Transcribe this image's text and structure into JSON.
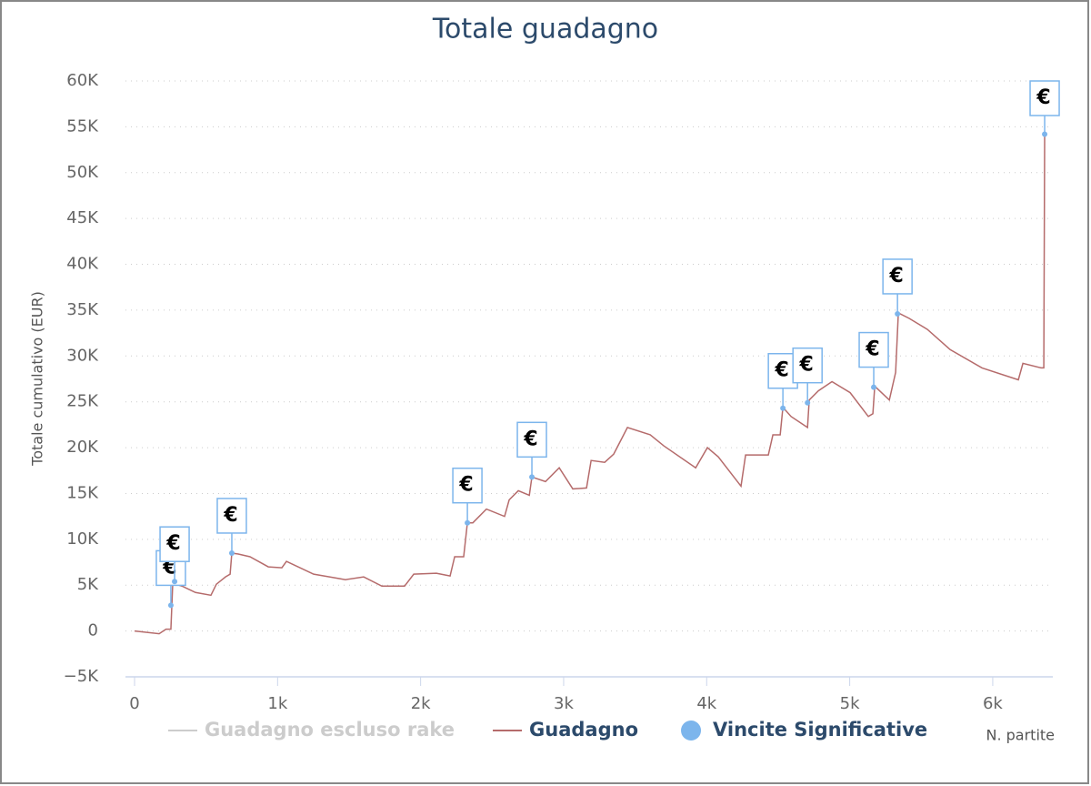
{
  "chart_data": {
    "type": "line",
    "title": "Totale guadagno",
    "y_label": "Totale cumulativo (EUR)",
    "x_label": "N. partite",
    "xlim": [
      0,
      6420
    ],
    "ylim": [
      -5000,
      60000
    ],
    "xticks": [
      0,
      {
        "value": 1000,
        "label": "1k"
      },
      {
        "value": 2000,
        "label": "2k"
      },
      {
        "value": 3000,
        "label": "3k"
      },
      {
        "value": 4000,
        "label": "4k"
      },
      {
        "value": 5000,
        "label": "5k"
      },
      {
        "value": 6000,
        "label": "6k"
      }
    ],
    "yticks": [
      {
        "value": -5000,
        "label": "−5K"
      },
      0,
      {
        "value": 5000,
        "label": "5K"
      },
      {
        "value": 10000,
        "label": "10K"
      },
      {
        "value": 15000,
        "label": "15K"
      },
      {
        "value": 20000,
        "label": "20K"
      },
      {
        "value": 25000,
        "label": "25K"
      },
      {
        "value": 30000,
        "label": "30K"
      },
      {
        "value": 35000,
        "label": "35K"
      },
      {
        "value": 40000,
        "label": "40K"
      },
      {
        "value": 45000,
        "label": "45K"
      },
      {
        "value": 50000,
        "label": "50K"
      },
      {
        "value": 55000,
        "label": "55K"
      },
      {
        "value": 60000,
        "label": "60K"
      }
    ],
    "grid": true,
    "hidden_series": [
      {
        "name": "Guadagno escluso rake",
        "color": "#cccccc"
      }
    ],
    "series": [
      {
        "name": "Guadagno",
        "color": "#b56b6b",
        "x": [
          0,
          172,
          220,
          254,
          267,
          331,
          426,
          534,
          572,
          636,
          668,
          680,
          725,
          807,
          935,
          1030,
          1062,
          1252,
          1475,
          1602,
          1729,
          1888,
          1952,
          2110,
          2206,
          2238,
          2301,
          2327,
          2365,
          2460,
          2587,
          2619,
          2683,
          2760,
          2778,
          2873,
          2969,
          3064,
          3160,
          3192,
          3287,
          3350,
          3446,
          3605,
          3700,
          3923,
          4005,
          4081,
          4240,
          4272,
          4431,
          4463,
          4514,
          4533,
          4590,
          4705,
          4717,
          4781,
          4876,
          5003,
          5130,
          5162,
          5175,
          5277,
          5321,
          5340,
          5416,
          5543,
          5702,
          5925,
          6179,
          6211,
          6338,
          6357,
          6363
        ],
        "values": [
          0,
          -300,
          200,
          200,
          5200,
          4900,
          4200,
          3900,
          5100,
          5900,
          6200,
          8500,
          8400,
          8100,
          7000,
          6900,
          7600,
          6200,
          5600,
          5900,
          4900,
          4900,
          6200,
          6300,
          6000,
          8100,
          8100,
          11800,
          11800,
          13300,
          12500,
          14300,
          15300,
          14800,
          16800,
          16300,
          17800,
          15500,
          15600,
          18600,
          18400,
          19300,
          22200,
          21400,
          20200,
          17800,
          20000,
          19000,
          15800,
          19200,
          19200,
          21400,
          21400,
          24400,
          23400,
          22200,
          25200,
          26200,
          27200,
          26000,
          23400,
          23700,
          26700,
          25200,
          28200,
          34700,
          34100,
          32900,
          30700,
          28700,
          27400,
          29200,
          28700,
          28700,
          54200
        ]
      },
      {
        "name": "Vincite Significative",
        "color": "#7cb5ec",
        "markers": true,
        "x": [
          254,
          280,
          680,
          2327,
          2778,
          4533,
          4705,
          5168,
          5334,
          6363
        ],
        "values": [
          2800,
          5400,
          8500,
          11800,
          16800,
          24300,
          24900,
          26600,
          34600,
          54200
        ],
        "labels": [
          "€",
          "€",
          "€",
          "€",
          "€",
          "€",
          "€",
          "€",
          "€",
          "€"
        ]
      }
    ]
  }
}
